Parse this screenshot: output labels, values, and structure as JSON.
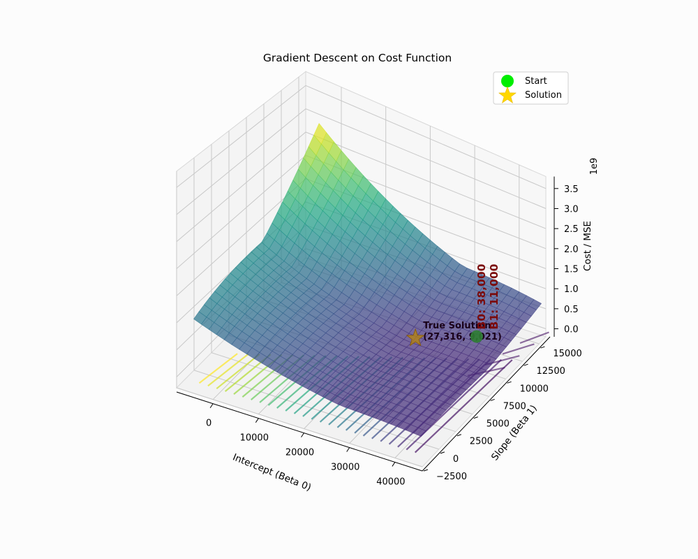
{
  "chart_data": {
    "type": "surface3d",
    "title": "Gradient Descent on Cost Function",
    "xlabel": "Intercept (Beta 0)",
    "ylabel": "Slope (Beta 1)",
    "zlabel": "Cost / MSE",
    "z_offset_label": "1e9",
    "x_ticks": [
      "0",
      "10000",
      "20000",
      "30000",
      "40000"
    ],
    "y_ticks": [
      "−2500",
      "0",
      "2500",
      "5000",
      "7500",
      "10000",
      "12500",
      "15000"
    ],
    "z_ticks": [
      "0.0",
      "0.5",
      "1.0",
      "1.5",
      "2.0",
      "2.5",
      "3.0",
      "3.5"
    ],
    "xlim": [
      -8000,
      46000
    ],
    "ylim": [
      -2500,
      16000
    ],
    "zlim": [
      -0.2,
      3.8
    ],
    "surface": {
      "x_min": -5000,
      "x_max": 45000,
      "y_min": -2000,
      "y_max": 16000,
      "colormap": "viridis",
      "minimum_x": 27316,
      "minimum_y": 9021,
      "cost_at_corners_1e9": {
        "x_min_y_min": 0.95,
        "x_min_y_max": 2.6,
        "x_max_y_min": 0.2,
        "x_max_y_max": 0.7
      }
    },
    "legend": {
      "placement": "upper right",
      "entries": [
        {
          "label": "Start",
          "marker": "circle",
          "color": "#00ee00"
        },
        {
          "label": "Solution",
          "marker": "star",
          "color": "#ffd700"
        }
      ]
    },
    "points": {
      "start": {
        "x": 38000,
        "y": 11000,
        "z": 0.0,
        "label_lines": [
          "B0: 38,000",
          "B1: 11,000"
        ],
        "color": "#2e7d32"
      },
      "solution": {
        "x": 27316,
        "y": 9021,
        "z": 0.0,
        "label_lines": [
          "True Solution",
          "(27,316, 9,021)"
        ],
        "color": "#b8860b"
      }
    }
  }
}
